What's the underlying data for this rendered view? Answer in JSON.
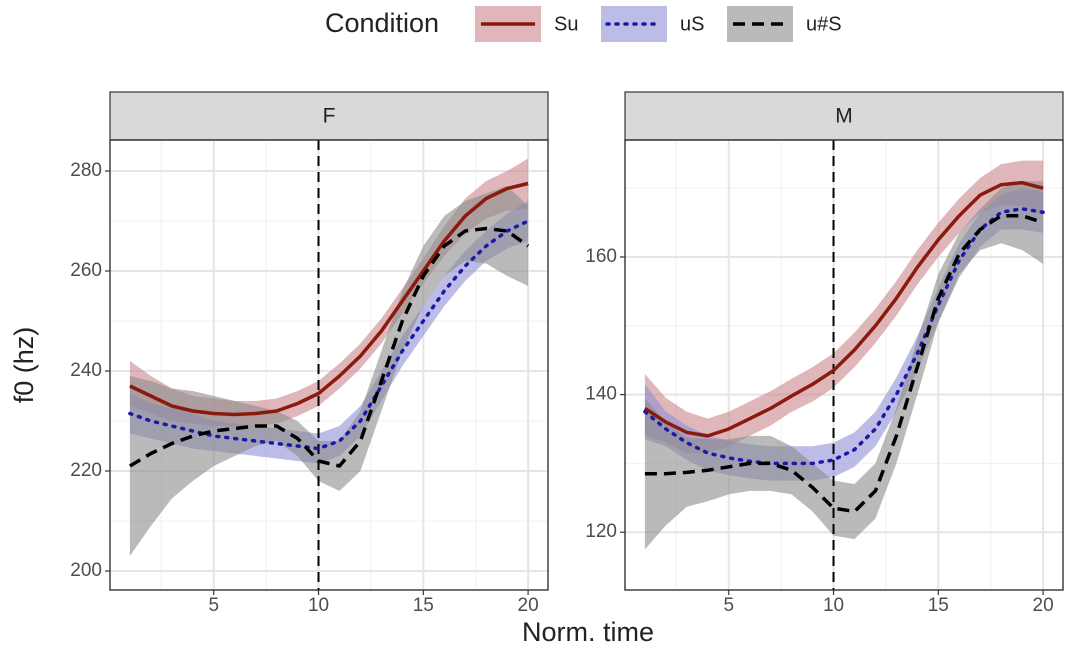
{
  "legend": {
    "title": "Condition"
  },
  "xlabel": "Norm. time",
  "ylabel": "f0 (hz)",
  "chart_data": [
    {
      "type": "line",
      "title": "F",
      "grid": true,
      "vline": 10,
      "x": [
        1,
        2,
        3,
        4,
        5,
        6,
        7,
        8,
        9,
        10,
        11,
        12,
        13,
        14,
        15,
        16,
        17,
        18,
        19,
        20
      ],
      "xlim": [
        0.05,
        20.95
      ],
      "xticks": [
        5,
        10,
        15,
        20
      ],
      "xminor": [
        2.5,
        7.5,
        12.5,
        17.5
      ],
      "ylim": [
        196.2,
        286.2
      ],
      "yticks": [
        200,
        220,
        240,
        260,
        280
      ],
      "yminor": [
        210,
        230,
        250,
        270
      ],
      "series": [
        {
          "name": "Su",
          "color": "#8b1a0e",
          "band_color": "#c9868a",
          "dash": "solid",
          "values": [
            237,
            235,
            233,
            232,
            231.5,
            231.3,
            231.5,
            232,
            233.5,
            235.5,
            239,
            243,
            248,
            254,
            260,
            266,
            271,
            274.5,
            276.5,
            277.5
          ],
          "lower": [
            233,
            231.5,
            230,
            229.5,
            229,
            229,
            229,
            229.5,
            231,
            233,
            236.5,
            240.5,
            245.5,
            251.5,
            257.5,
            263,
            267.5,
            270.5,
            272,
            272.5
          ],
          "upper": [
            242,
            239,
            236.5,
            235,
            234.5,
            234,
            234,
            234.5,
            236,
            238,
            241.5,
            245.5,
            250.5,
            256.5,
            262.5,
            269,
            274.5,
            278,
            280,
            282.5
          ]
        },
        {
          "name": "uS",
          "color": "#1a1aa6",
          "band_color": "#8f8fd6",
          "dash": "dotted",
          "values": [
            231.5,
            230,
            229,
            228,
            227,
            226.5,
            226,
            225.5,
            225,
            224.5,
            226,
            230,
            237,
            244,
            250,
            256,
            261,
            265,
            268,
            270
          ],
          "lower": [
            227.5,
            226.5,
            225.5,
            224.5,
            224,
            223.5,
            223,
            222.5,
            222,
            221.5,
            223,
            227,
            234,
            241,
            247,
            253,
            258,
            262,
            264.5,
            266
          ],
          "upper": [
            235.5,
            233.5,
            232.5,
            231.5,
            230,
            229.5,
            229,
            228.5,
            228,
            227.5,
            229,
            233,
            240,
            247,
            253,
            259,
            264,
            268,
            271.5,
            274
          ]
        },
        {
          "name": "u#S",
          "color": "#000000",
          "band_color": "#8c8c8c",
          "dash": "dashed",
          "values": [
            221,
            223.5,
            225.5,
            227,
            228,
            228.5,
            229,
            229,
            226.5,
            222,
            221,
            226,
            238,
            250,
            259,
            265,
            268,
            268.5,
            268,
            265
          ],
          "lower": [
            203,
            209,
            214.5,
            218,
            221,
            223,
            225,
            226,
            223,
            218,
            216,
            220,
            232,
            244,
            253,
            259,
            262,
            261.5,
            259,
            257
          ],
          "upper": [
            239,
            238,
            236.5,
            236,
            235,
            234,
            233,
            232,
            230,
            226,
            226,
            232,
            244,
            256,
            265,
            271,
            274,
            275.5,
            277,
            273
          ]
        }
      ]
    },
    {
      "type": "line",
      "title": "M",
      "grid": true,
      "vline": 10,
      "x": [
        1,
        2,
        3,
        4,
        5,
        6,
        7,
        8,
        9,
        10,
        11,
        12,
        13,
        14,
        15,
        16,
        17,
        18,
        19,
        20
      ],
      "xlim": [
        0.05,
        20.95
      ],
      "xticks": [
        5,
        10,
        15,
        20
      ],
      "xminor": [
        2.5,
        7.5,
        12.5,
        17.5
      ],
      "ylim": [
        111.6,
        177
      ],
      "yticks": [
        120,
        140,
        160
      ],
      "yminor": [
        130,
        150,
        170
      ],
      "series": [
        {
          "name": "Su",
          "color": "#8b1a0e",
          "band_color": "#c9868a",
          "dash": "solid",
          "values": [
            138,
            136,
            134.5,
            134,
            135,
            136.5,
            138,
            139.8,
            141.5,
            143.5,
            146.5,
            150,
            154,
            158.5,
            162.5,
            166,
            169,
            170.5,
            170.8,
            170
          ],
          "lower": [
            134,
            133,
            131.5,
            131.5,
            132.5,
            134,
            135.5,
            137.5,
            139,
            141,
            144,
            147.5,
            151.5,
            156,
            160,
            163.5,
            166.5,
            167.5,
            167.5,
            166
          ],
          "upper": [
            143,
            139.5,
            137.5,
            136.5,
            137.5,
            139,
            140.5,
            142.3,
            144,
            146,
            149,
            152.5,
            156.5,
            161,
            165,
            168.5,
            171.5,
            173.5,
            174,
            174
          ]
        },
        {
          "name": "uS",
          "color": "#1a1aa6",
          "band_color": "#8f8fd6",
          "dash": "dotted",
          "values": [
            137.5,
            135,
            133,
            131.5,
            130.8,
            130.3,
            130,
            130,
            130,
            130.5,
            132,
            135,
            140,
            146,
            153,
            159.5,
            164,
            166.5,
            167,
            166.5
          ],
          "lower": [
            133.5,
            132.5,
            130.5,
            129,
            128.3,
            127.8,
            127.5,
            127.5,
            127.5,
            128,
            129.5,
            132.5,
            137.5,
            143.5,
            150.5,
            157,
            161.5,
            164,
            164,
            163.5
          ],
          "upper": [
            141.5,
            137.5,
            135.5,
            134,
            133.3,
            132.8,
            132.5,
            132.5,
            132.5,
            133,
            134.5,
            137.5,
            142.5,
            148.5,
            155.5,
            162,
            166.5,
            169,
            170,
            169.5
          ]
        },
        {
          "name": "u#S",
          "color": "#000000",
          "band_color": "#8c8c8c",
          "dash": "dashed",
          "values": [
            128.5,
            128.5,
            128.7,
            129,
            129.5,
            130,
            130,
            129,
            126.5,
            123.5,
            123,
            126,
            134,
            144,
            154,
            160.5,
            164,
            166,
            166,
            165
          ],
          "lower": [
            117.5,
            121,
            123.7,
            124.5,
            125.5,
            126,
            126,
            125.5,
            123,
            119.5,
            119,
            122,
            130,
            140,
            150.5,
            157.5,
            161,
            162,
            161,
            159
          ],
          "upper": [
            139.5,
            136,
            133.7,
            133.5,
            133.5,
            134,
            134,
            132.5,
            130,
            127.5,
            127,
            130,
            138,
            148,
            157.5,
            163.5,
            167,
            170,
            171,
            171
          ]
        }
      ]
    }
  ]
}
